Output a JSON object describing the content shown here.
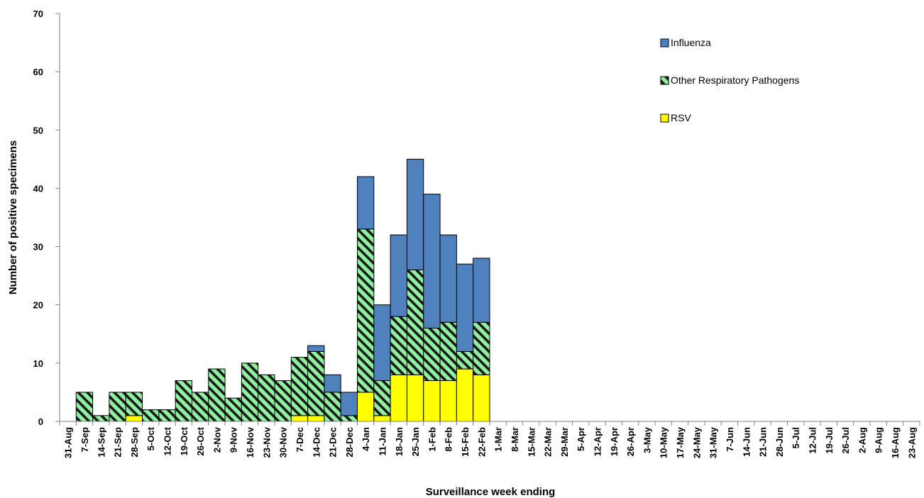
{
  "chart_data": {
    "type": "bar",
    "stacked": true,
    "title": "",
    "xlabel": "Surveillance week ending",
    "ylabel": "Number of positive specimens",
    "ylim": [
      0,
      70
    ],
    "yticks": [
      0,
      10,
      20,
      30,
      40,
      50,
      60,
      70
    ],
    "grid": false,
    "legend_position": "top-right",
    "categories": [
      "31-Aug",
      "7-Sep",
      "14-Sep",
      "21-Sep",
      "28-Sep",
      "5-Oct",
      "12-Oct",
      "19-Oct",
      "26-Oct",
      "2-Nov",
      "9-Nov",
      "16-Nov",
      "23-Nov",
      "30-Nov",
      "7-Dec",
      "14-Dec",
      "21-Dec",
      "28-Dec",
      "4-Jan",
      "11-Jan",
      "18-Jan",
      "25-Jan",
      "1-Feb",
      "8-Feb",
      "15-Feb",
      "22-Feb",
      "1-Mar",
      "8-Mar",
      "15-Mar",
      "22-Mar",
      "29-Mar",
      "5-Apr",
      "12-Apr",
      "19-Apr",
      "26-Apr",
      "3-May",
      "10-May",
      "17-May",
      "24-May",
      "31-May",
      "7-Jun",
      "14-Jun",
      "21-Jun",
      "28-Jun",
      "5-Jul",
      "12-Jul",
      "19-Jul",
      "26-Jul",
      "2-Aug",
      "9-Aug",
      "16-Aug",
      "23-Aug"
    ],
    "series": [
      {
        "name": "RSV",
        "color": "#ffff00",
        "values": [
          0,
          0,
          0,
          0,
          1,
          0,
          0,
          0,
          0,
          0,
          0,
          0,
          0,
          0,
          1,
          1,
          0,
          0,
          5,
          1,
          8,
          8,
          7,
          7,
          9,
          8,
          0,
          0,
          0,
          0,
          0,
          0,
          0,
          0,
          0,
          0,
          0,
          0,
          0,
          0,
          0,
          0,
          0,
          0,
          0,
          0,
          0,
          0,
          0,
          0,
          0,
          0
        ]
      },
      {
        "name": "Other Respiratory Pathogens",
        "color": "#8ff0a0",
        "pattern": "diagonal-stripes",
        "values": [
          0,
          5,
          1,
          5,
          4,
          2,
          2,
          7,
          5,
          9,
          4,
          10,
          8,
          7,
          10,
          11,
          5,
          1,
          28,
          6,
          10,
          18,
          9,
          10,
          3,
          9,
          0,
          0,
          0,
          0,
          0,
          0,
          0,
          0,
          0,
          0,
          0,
          0,
          0,
          0,
          0,
          0,
          0,
          0,
          0,
          0,
          0,
          0,
          0,
          0,
          0,
          0
        ]
      },
      {
        "name": "Influenza",
        "color": "#4f81bd",
        "values": [
          0,
          0,
          0,
          0,
          0,
          0,
          0,
          0,
          0,
          0,
          0,
          0,
          0,
          0,
          0,
          1,
          3,
          4,
          9,
          13,
          14,
          19,
          23,
          15,
          15,
          11,
          0,
          0,
          0,
          0,
          0,
          0,
          0,
          0,
          0,
          0,
          0,
          0,
          0,
          0,
          0,
          0,
          0,
          0,
          0,
          0,
          0,
          0,
          0,
          0,
          0,
          0
        ]
      }
    ],
    "legend_order": [
      "Influenza",
      "Other Respiratory Pathogens",
      "RSV"
    ]
  }
}
